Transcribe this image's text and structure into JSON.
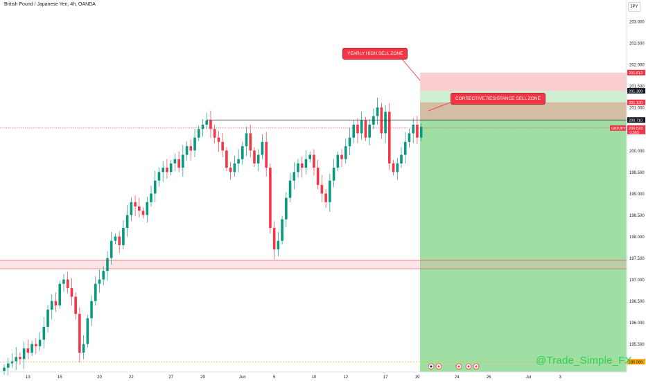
{
  "header": {
    "title": "British Pound / Japanese Yen, 4h, OANDA",
    "currency_button": "JPY"
  },
  "watermark": "@Trade_Simple_FX",
  "notes": {
    "yearly": "YEARLY HIGH SELL ZONE",
    "corrective": "CORRECTIVE RESISTANCE SELL ZONE"
  },
  "price_tags": {
    "symbol": "GBPJPY",
    "current_price": "200.523",
    "countdown": "-3:56S",
    "p201812": "201.812",
    "p201389": "201.389",
    "p201120": "201.120",
    "p200710": "200.710",
    "p195089": "195.089"
  },
  "colors": {
    "up": "#089981",
    "down": "#f23645",
    "zone_red": "#f7a6ab",
    "zone_green": "#3fc04a",
    "stop": "#f23645",
    "target": "#2dbd3c"
  },
  "chart_data": {
    "type": "candlestick",
    "title": "British Pound / Japanese Yen, 4h, OANDA",
    "ylim": [
      194.85,
      203.5
    ],
    "y_ticks": [
      195.5,
      196.0,
      196.5,
      197.0,
      197.5,
      198.0,
      198.5,
      199.0,
      199.5,
      200.0,
      201.0,
      201.5,
      202.0,
      202.5,
      203.0
    ],
    "y_tick_labels": [
      "195.500",
      "196.000",
      "196.500",
      "197.000",
      "197.500",
      "198.000",
      "198.500",
      "199.000",
      "199.500",
      "200.000",
      "201.000",
      "201.500",
      "202.000",
      "202.500",
      "203.000"
    ],
    "x_ticks": [
      "13",
      "15",
      "20",
      "22",
      "27",
      "29",
      "Jun",
      "5",
      "10",
      "12",
      "17",
      "19",
      "24",
      "26",
      "Jul",
      "3"
    ],
    "x_tick_index": [
      6,
      14,
      24,
      32,
      42,
      50,
      60,
      68,
      78,
      86,
      96,
      104,
      114,
      122,
      132,
      140
    ],
    "close": [
      194.95,
      195.05,
      195.1,
      195.2,
      195.15,
      195.4,
      195.3,
      195.5,
      195.45,
      195.6,
      195.9,
      196.3,
      196.5,
      196.4,
      196.9,
      197.0,
      196.8,
      196.6,
      196.2,
      195.3,
      195.5,
      196.1,
      196.5,
      196.9,
      197.0,
      197.2,
      197.5,
      197.9,
      198.0,
      197.8,
      198.2,
      198.5,
      198.8,
      198.7,
      198.6,
      198.5,
      198.8,
      199.0,
      199.3,
      199.5,
      199.6,
      199.5,
      199.7,
      199.8,
      199.6,
      199.9,
      200.1,
      200.0,
      200.3,
      200.5,
      200.6,
      200.7,
      200.5,
      200.3,
      200.2,
      200.0,
      199.6,
      199.5,
      199.7,
      199.8,
      200.1,
      200.4,
      200.0,
      199.7,
      199.9,
      200.2,
      199.6,
      198.2,
      197.7,
      197.9,
      198.4,
      198.9,
      199.3,
      199.5,
      199.7,
      199.6,
      199.8,
      199.9,
      199.6,
      199.2,
      199.0,
      198.8,
      199.3,
      199.6,
      199.9,
      199.8,
      200.1,
      200.3,
      200.6,
      200.4,
      200.7,
      200.3,
      200.6,
      200.8,
      201.0,
      200.4,
      200.9,
      199.7,
      199.5,
      199.7,
      199.9,
      200.2,
      200.4,
      200.6,
      200.3,
      200.55
    ],
    "horizontal_levels": [
      200.71,
      200.523,
      195.089
    ],
    "support_zone": [
      197.25,
      197.45
    ],
    "position": {
      "type": "short",
      "stop_zone": [
        201.389,
        201.812
      ],
      "entry_zone": [
        200.71,
        201.12
      ],
      "target_zone": [
        194.85,
        200.71
      ]
    }
  }
}
